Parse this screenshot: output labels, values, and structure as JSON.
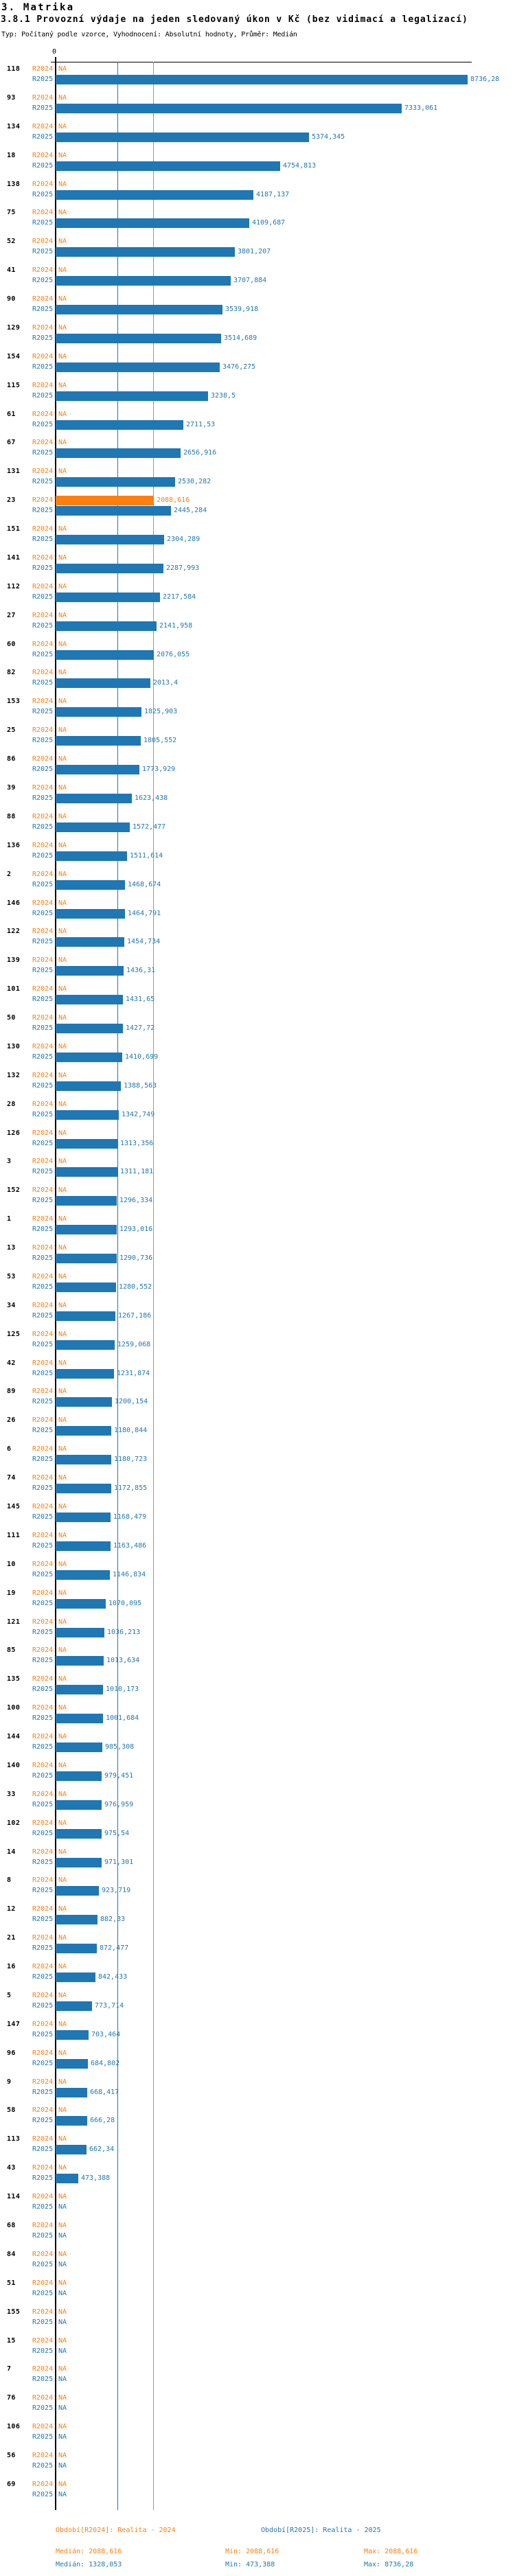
{
  "header": {
    "title": "3. Matrika",
    "subtitle": "3.8.1 Provozní výdaje na jeden sledovaný úkon v Kč (bez vidimací a legalizací)",
    "meta": "Typ: Počítaný podle vzorce, Vyhodnocení: Absolutní hodnoty, Průměr: Medián"
  },
  "colors": {
    "r2024": "#ff7f0e",
    "r2025": "#1f77b4",
    "axis": "#000000"
  },
  "chart_data": {
    "type": "bar",
    "orientation": "horizontal",
    "value_unit": "Kč",
    "na_text": "NA",
    "series": [
      {
        "name": "R2024",
        "color": "#ff7f0e"
      },
      {
        "name": "R2025",
        "color": "#1f77b4"
      }
    ],
    "axis": {
      "zero_label": "0",
      "xmax": 8736.28,
      "grid": "off"
    },
    "reference_lines": [
      {
        "name": "median-r2025",
        "value": 1328.053,
        "color": "#1f77b4"
      },
      {
        "name": "median-r2024",
        "value": 2088.616,
        "color": "#ff7f0e"
      }
    ],
    "groups": [
      {
        "label": "118",
        "R2024": "NA",
        "R2025": "8736,28"
      },
      {
        "label": "93",
        "R2024": "NA",
        "R2025": "7333,061"
      },
      {
        "label": "134",
        "R2024": "NA",
        "R2025": "5374,345"
      },
      {
        "label": "18",
        "R2024": "NA",
        "R2025": "4754,813"
      },
      {
        "label": "138",
        "R2024": "NA",
        "R2025": "4187,137"
      },
      {
        "label": "75",
        "R2024": "NA",
        "R2025": "4109,687"
      },
      {
        "label": "52",
        "R2024": "NA",
        "R2025": "3801,207"
      },
      {
        "label": "41",
        "R2024": "NA",
        "R2025": "3707,884"
      },
      {
        "label": "90",
        "R2024": "NA",
        "R2025": "3539,918"
      },
      {
        "label": "129",
        "R2024": "NA",
        "R2025": "3514,689"
      },
      {
        "label": "154",
        "R2024": "NA",
        "R2025": "3476,275"
      },
      {
        "label": "115",
        "R2024": "NA",
        "R2025": "3238,5"
      },
      {
        "label": "61",
        "R2024": "NA",
        "R2025": "2711,53"
      },
      {
        "label": "67",
        "R2024": "NA",
        "R2025": "2656,916"
      },
      {
        "label": "131",
        "R2024": "NA",
        "R2025": "2530,282"
      },
      {
        "label": "23",
        "R2024": "2088,616",
        "R2025": "2445,284"
      },
      {
        "label": "151",
        "R2024": "NA",
        "R2025": "2304,289"
      },
      {
        "label": "141",
        "R2024": "NA",
        "R2025": "2287,993"
      },
      {
        "label": "112",
        "R2024": "NA",
        "R2025": "2217,584"
      },
      {
        "label": "27",
        "R2024": "NA",
        "R2025": "2141,958"
      },
      {
        "label": "60",
        "R2024": "NA",
        "R2025": "2076,055"
      },
      {
        "label": "82",
        "R2024": "NA",
        "R2025": "2013,4"
      },
      {
        "label": "153",
        "R2024": "NA",
        "R2025": "1825,903"
      },
      {
        "label": "25",
        "R2024": "NA",
        "R2025": "1805,552"
      },
      {
        "label": "86",
        "R2024": "NA",
        "R2025": "1773,929"
      },
      {
        "label": "39",
        "R2024": "NA",
        "R2025": "1623,438"
      },
      {
        "label": "88",
        "R2024": "NA",
        "R2025": "1572,477"
      },
      {
        "label": "136",
        "R2024": "NA",
        "R2025": "1511,614"
      },
      {
        "label": "2",
        "R2024": "NA",
        "R2025": "1468,674"
      },
      {
        "label": "146",
        "R2024": "NA",
        "R2025": "1464,791"
      },
      {
        "label": "122",
        "R2024": "NA",
        "R2025": "1454,734"
      },
      {
        "label": "139",
        "R2024": "NA",
        "R2025": "1436,31"
      },
      {
        "label": "101",
        "R2024": "NA",
        "R2025": "1431,65"
      },
      {
        "label": "50",
        "R2024": "NA",
        "R2025": "1427,72"
      },
      {
        "label": "130",
        "R2024": "NA",
        "R2025": "1410,699"
      },
      {
        "label": "132",
        "R2024": "NA",
        "R2025": "1388,563"
      },
      {
        "label": "28",
        "R2024": "NA",
        "R2025": "1342,749"
      },
      {
        "label": "126",
        "R2024": "NA",
        "R2025": "1313,356"
      },
      {
        "label": "3",
        "R2024": "NA",
        "R2025": "1311,181"
      },
      {
        "label": "152",
        "R2024": "NA",
        "R2025": "1296,334"
      },
      {
        "label": "1",
        "R2024": "NA",
        "R2025": "1293,016"
      },
      {
        "label": "13",
        "R2024": "NA",
        "R2025": "1290,736"
      },
      {
        "label": "53",
        "R2024": "NA",
        "R2025": "1280,552"
      },
      {
        "label": "34",
        "R2024": "NA",
        "R2025": "1267,186"
      },
      {
        "label": "125",
        "R2024": "NA",
        "R2025": "1259,068"
      },
      {
        "label": "42",
        "R2024": "NA",
        "R2025": "1231,874"
      },
      {
        "label": "89",
        "R2024": "NA",
        "R2025": "1200,154"
      },
      {
        "label": "26",
        "R2024": "NA",
        "R2025": "1180,844"
      },
      {
        "label": "6",
        "R2024": "NA",
        "R2025": "1180,723"
      },
      {
        "label": "74",
        "R2024": "NA",
        "R2025": "1172,855"
      },
      {
        "label": "145",
        "R2024": "NA",
        "R2025": "1168,479"
      },
      {
        "label": "111",
        "R2024": "NA",
        "R2025": "1163,486"
      },
      {
        "label": "10",
        "R2024": "NA",
        "R2025": "1146,834"
      },
      {
        "label": "19",
        "R2024": "NA",
        "R2025": "1070,095"
      },
      {
        "label": "121",
        "R2024": "NA",
        "R2025": "1036,213"
      },
      {
        "label": "85",
        "R2024": "NA",
        "R2025": "1013,634"
      },
      {
        "label": "135",
        "R2024": "NA",
        "R2025": "1010,173"
      },
      {
        "label": "100",
        "R2024": "NA",
        "R2025": "1001,684"
      },
      {
        "label": "144",
        "R2024": "NA",
        "R2025": "985,308"
      },
      {
        "label": "140",
        "R2024": "NA",
        "R2025": "979,451"
      },
      {
        "label": "33",
        "R2024": "NA",
        "R2025": "976,959"
      },
      {
        "label": "102",
        "R2024": "NA",
        "R2025": "975,54"
      },
      {
        "label": "14",
        "R2024": "NA",
        "R2025": "971,301"
      },
      {
        "label": "8",
        "R2024": "NA",
        "R2025": "923,719"
      },
      {
        "label": "12",
        "R2024": "NA",
        "R2025": "882,33"
      },
      {
        "label": "21",
        "R2024": "NA",
        "R2025": "872,477"
      },
      {
        "label": "16",
        "R2024": "NA",
        "R2025": "842,433"
      },
      {
        "label": "5",
        "R2024": "NA",
        "R2025": "773,714"
      },
      {
        "label": "147",
        "R2024": "NA",
        "R2025": "703,464"
      },
      {
        "label": "96",
        "R2024": "NA",
        "R2025": "684,802"
      },
      {
        "label": "9",
        "R2024": "NA",
        "R2025": "668,417"
      },
      {
        "label": "58",
        "R2024": "NA",
        "R2025": "666,28"
      },
      {
        "label": "113",
        "R2024": "NA",
        "R2025": "662,34"
      },
      {
        "label": "43",
        "R2024": "NA",
        "R2025": "473,388"
      },
      {
        "label": "114",
        "R2024": "NA",
        "R2025": "NA"
      },
      {
        "label": "68",
        "R2024": "NA",
        "R2025": "NA"
      },
      {
        "label": "84",
        "R2024": "NA",
        "R2025": "NA"
      },
      {
        "label": "51",
        "R2024": "NA",
        "R2025": "NA"
      },
      {
        "label": "155",
        "R2024": "NA",
        "R2025": "NA"
      },
      {
        "label": "15",
        "R2024": "NA",
        "R2025": "NA"
      },
      {
        "label": "7",
        "R2024": "NA",
        "R2025": "NA"
      },
      {
        "label": "76",
        "R2024": "NA",
        "R2025": "NA"
      },
      {
        "label": "106",
        "R2024": "NA",
        "R2025": "NA"
      },
      {
        "label": "56",
        "R2024": "NA",
        "R2025": "NA"
      },
      {
        "label": "69",
        "R2024": "NA",
        "R2025": "NA"
      }
    ]
  },
  "legend": {
    "r2024": "Období[R2024]: Realita - 2024",
    "r2025": "Období[R2025]: Realita - 2025"
  },
  "stats": {
    "r2024": {
      "median": "Medián: 2088,616",
      "min": "Min: 2088,616",
      "max": "Max: 2088,616"
    },
    "r2025": {
      "median": "Medián: 1328,053",
      "min": "Min: 473,388",
      "max": "Max: 8736,28"
    }
  }
}
